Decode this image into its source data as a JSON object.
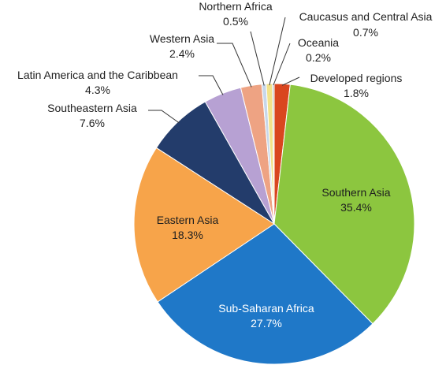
{
  "chart_data": {
    "type": "pie",
    "title": "",
    "start": "12 o'clock, clockwise",
    "legend": "none",
    "slices": [
      {
        "name": "Developed regions",
        "value": 1.8,
        "value_label": "1.8%",
        "color": "#d9461f"
      },
      {
        "name": "Southern Asia",
        "value": 35.4,
        "value_label": "35.4%",
        "color": "#8cc63f"
      },
      {
        "name": "Sub-Saharan Africa",
        "value": 27.7,
        "value_label": "27.7%",
        "color": "#1f78c8"
      },
      {
        "name": "Eastern Asia",
        "value": 18.3,
        "value_label": "18.3%",
        "color": "#f7a44a"
      },
      {
        "name": "Southeastern Asia",
        "value": 7.6,
        "value_label": "7.6%",
        "color": "#233c6b"
      },
      {
        "name": "Latin America and the Caribbean",
        "value": 4.3,
        "value_label": "4.3%",
        "color": "#b7a1d3"
      },
      {
        "name": "Western Asia",
        "value": 2.4,
        "value_label": "2.4%",
        "color": "#eea383"
      },
      {
        "name": "Northern Africa",
        "value": 0.5,
        "value_label": "0.5%",
        "color": "#c7d7ea"
      },
      {
        "name": "Caucasus and Central Asia",
        "value": 0.7,
        "value_label": "0.7%",
        "color": "#f2e28a"
      },
      {
        "name": "Oceania",
        "value": 0.2,
        "value_label": "0.2%",
        "color": "#bdbdbd"
      }
    ]
  }
}
